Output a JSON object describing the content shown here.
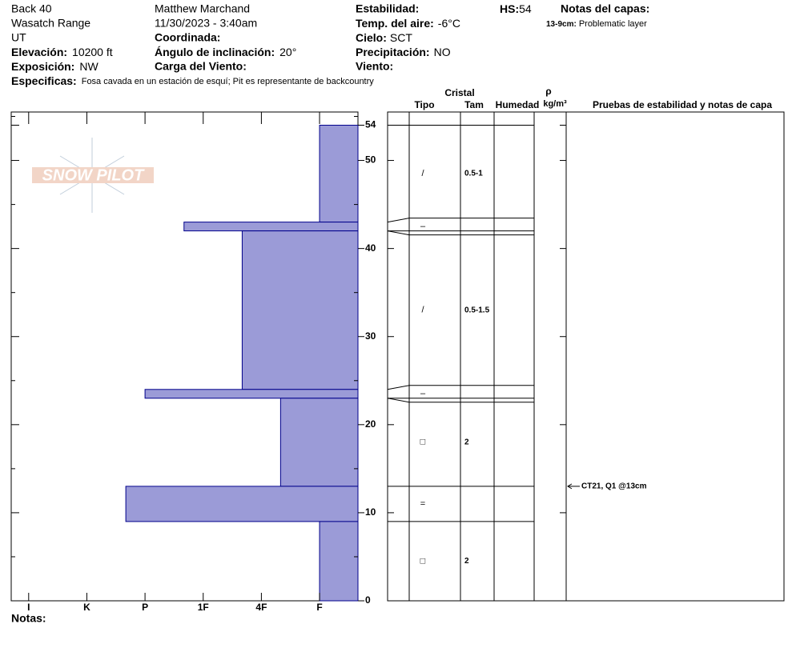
{
  "header": {
    "location": "Back 40",
    "range": "Wasatch Range",
    "state": "UT",
    "elevation": {
      "label": "Elevación:",
      "value": "10200 ft"
    },
    "aspect": {
      "label": "Exposición:",
      "value": "NW"
    },
    "observer": "Matthew Marchand",
    "datetime": "11/30/2023 - 3:40am",
    "coordinates": {
      "label": "Coordinada:"
    },
    "slope": {
      "label": "Ángulo de inclinación:",
      "value": "20°"
    },
    "wind_loading": {
      "label": "Carga del Viento:"
    },
    "stability": {
      "label": "Estabilidad:"
    },
    "air_temp": {
      "label": "Temp. del aire:",
      "value": "-6°C"
    },
    "sky": {
      "label": "Cielo:",
      "value": "SCT"
    },
    "precip": {
      "label": "Precipitación:",
      "value": "NO"
    },
    "wind": {
      "label": "Viento:"
    },
    "hs": {
      "label": "HS:",
      "value": "54"
    },
    "layer_notes": {
      "label": "Notas del capas:",
      "items": [
        {
          "range": "13-9cm:",
          "note": "Problematic layer"
        }
      ]
    },
    "specifics": {
      "label": "Especificas:",
      "value": "Fosa cavada en un estación de esquí; Pit es representante de backcountry"
    }
  },
  "logo": "SNOW PILOT",
  "columns": {
    "crystal": "Cristal",
    "form": "Tipo",
    "size": "Tam",
    "moisture": "Humedad",
    "density": "ρ",
    "density_unit": "kg/m³",
    "tests": "Pruebas de estabilidad y notas de capa"
  },
  "chart_data": {
    "type": "bar",
    "orientation": "horizontal",
    "color": "#9b9bd7",
    "edge_color": "#00008b",
    "xlim": [
      6.3,
      0.34
    ],
    "xticks": [
      {
        "value": 6,
        "label": "I"
      },
      {
        "value": 5,
        "label": "K"
      },
      {
        "value": 4,
        "label": "P"
      },
      {
        "value": 3,
        "label": "1F"
      },
      {
        "value": 2,
        "label": "4F"
      },
      {
        "value": 1,
        "label": "F"
      }
    ],
    "ylim": [
      0,
      55.5
    ],
    "yticks": [
      0,
      10,
      20,
      30,
      40,
      50,
      54
    ],
    "layers": [
      {
        "top": 54,
        "bottom": 43,
        "hardness": 1,
        "form": "/",
        "size": "0.5-1"
      },
      {
        "top": 43,
        "bottom": 42,
        "hardness": 3.33,
        "form": "–"
      },
      {
        "top": 42,
        "bottom": 24,
        "hardness": 2.33,
        "form": "/",
        "size": "0.5-1.5"
      },
      {
        "top": 24,
        "bottom": 23,
        "hardness": 4,
        "form": "–"
      },
      {
        "top": 23,
        "bottom": 13,
        "hardness": 1.67,
        "form": "□",
        "size": "2"
      },
      {
        "top": 13,
        "bottom": 9,
        "hardness": 4.33,
        "form": "="
      },
      {
        "top": 9,
        "bottom": 0,
        "hardness": 1,
        "form": "□",
        "size": "2"
      }
    ]
  },
  "tests": [
    {
      "depth": 13,
      "label": "CT21, Q1 @13cm"
    }
  ],
  "footer": {
    "notes": "Notas:"
  }
}
